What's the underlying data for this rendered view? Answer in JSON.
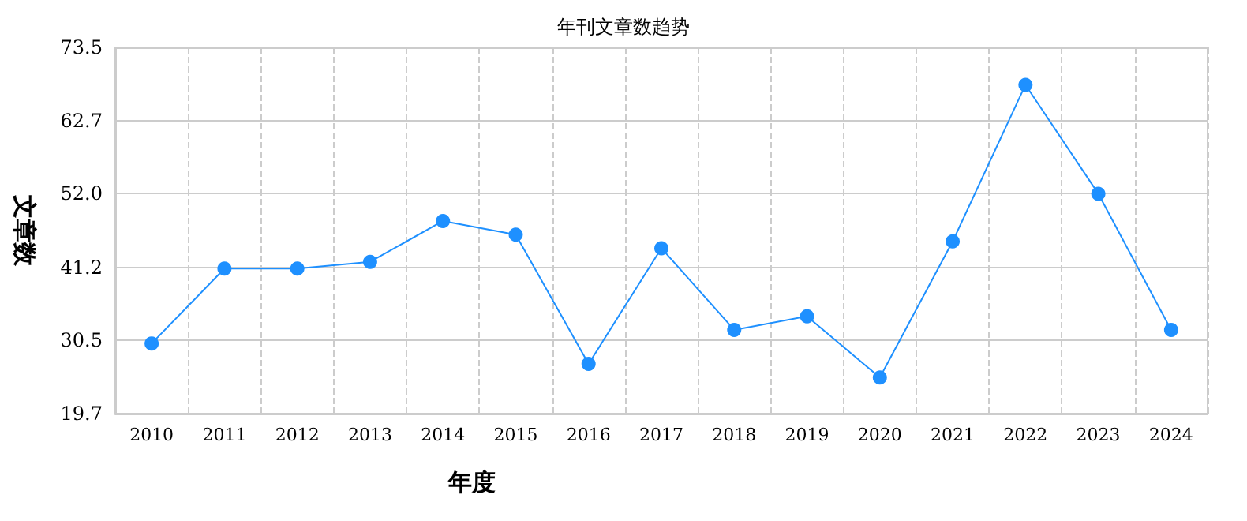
{
  "chart_data": {
    "type": "line",
    "title": "年刊文章数趋势",
    "xlabel": "年度",
    "ylabel": "文章数",
    "categories": [
      "2010",
      "2011",
      "2012",
      "2013",
      "2014",
      "2015",
      "2016",
      "2017",
      "2018",
      "2019",
      "2020",
      "2021",
      "2022",
      "2023",
      "2024"
    ],
    "series": [
      {
        "color": "#1e90ff",
        "values": [
          30,
          41,
          41,
          42,
          48,
          46,
          27,
          44,
          32,
          34,
          25,
          45,
          68,
          52,
          32
        ]
      }
    ],
    "ylim": [
      19.7,
      73.5
    ],
    "yticks": [
      19.7,
      30.5,
      41.2,
      {
        "value": 52,
        "label": "52.0"
      },
      62.7,
      73.5
    ],
    "grid": true,
    "marker": "circle"
  }
}
